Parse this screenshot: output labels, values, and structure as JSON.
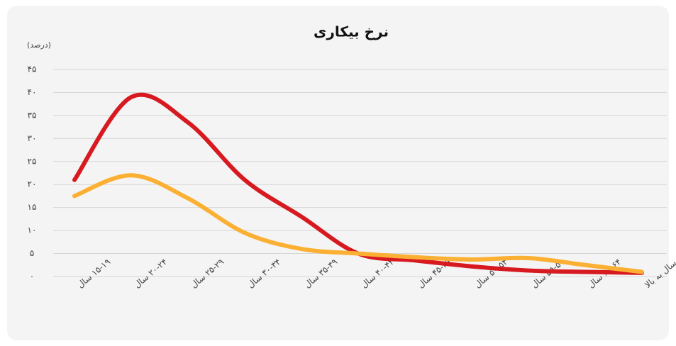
{
  "chart_data": {
    "type": "line",
    "title": "نرخ بیکاری",
    "y_label": "(درصد)",
    "categories": [
      "۱۵-۱۹ سال",
      "۲۰-۲۴ سال",
      "۲۵-۲۹ سال",
      "۳۰-۳۴ سال",
      "۳۵-۳۹ سال",
      "۴۰-۴۴ سال",
      "۴۵-۴۹ سال",
      "۵۰-۵۴ سال",
      "۵۵-۵۹ سال",
      "۶۰-۶۴ سال",
      "۶۵ سال به بالا"
    ],
    "series": [
      {
        "color": "#d71920",
        "values": [
          21,
          39,
          33.5,
          21,
          13,
          5,
          3.5,
          2.2,
          1.3,
          1,
          0.8
        ]
      },
      {
        "color": "#fbb034",
        "values": [
          17.5,
          22,
          17,
          9.5,
          6,
          5,
          4.2,
          3.7,
          4,
          2.5,
          1
        ]
      }
    ],
    "ylim": [
      0,
      45
    ],
    "yticks": [
      {
        "value": 0,
        "label": "۰"
      },
      {
        "value": 5,
        "label": "۵"
      },
      {
        "value": 10,
        "label": "۱۰"
      },
      {
        "value": 15,
        "label": "۱۵"
      },
      {
        "value": 20,
        "label": "۲۰"
      },
      {
        "value": 25,
        "label": "۲۵"
      },
      {
        "value": 30,
        "label": "۳۰"
      },
      {
        "value": 35,
        "label": "۳۵"
      },
      {
        "value": 40,
        "label": "۴۰"
      },
      {
        "value": 45,
        "label": "۴۵"
      }
    ],
    "grid": true
  }
}
